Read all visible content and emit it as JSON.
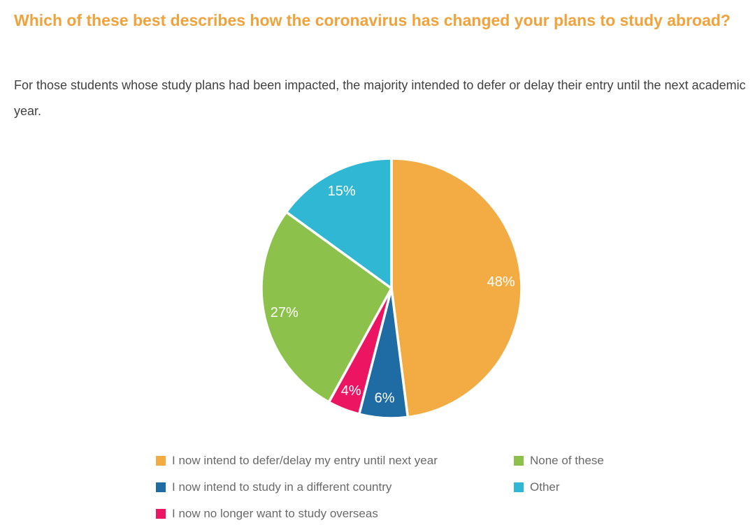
{
  "page": {
    "title": "Which of these best describes how the coronavirus has changed your plans to study abroad?",
    "subtitle": "For those students whose study plans had been impacted, the majority intended to defer or delay their entry until the next academic year.",
    "title_color": "#F0A33C",
    "subtitle_color": "#414141",
    "background_color": "#FFFFFF"
  },
  "chart_data": {
    "type": "pie",
    "title": "Which of these best describes how the coronavirus has changed your plans to study abroad?",
    "start_angle_deg": 0,
    "direction": "clockwise",
    "slices": [
      {
        "label": "I now intend to defer/delay my entry until next year",
        "value": 48,
        "data_label": "48%",
        "color": "#F2AC43"
      },
      {
        "label": "I now intend to study in a different country",
        "value": 6,
        "data_label": "6%",
        "color": "#1F6BA4"
      },
      {
        "label": "I now no longer want to study overseas",
        "value": 4,
        "data_label": "4%",
        "color": "#EB1562"
      },
      {
        "label": "None of these",
        "value": 27,
        "data_label": "27%",
        "color": "#8CC24B"
      },
      {
        "label": "Other",
        "value": 15,
        "data_label": "15%",
        "color": "#30B7D3"
      }
    ],
    "data_label_color": "#FFFFFF",
    "slice_divider_color": "#FFFFFF",
    "legend": {
      "position": "bottom",
      "text_color": "#6A6A6A",
      "columns": [
        [
          0,
          1,
          2
        ],
        [
          3,
          4
        ]
      ]
    }
  }
}
